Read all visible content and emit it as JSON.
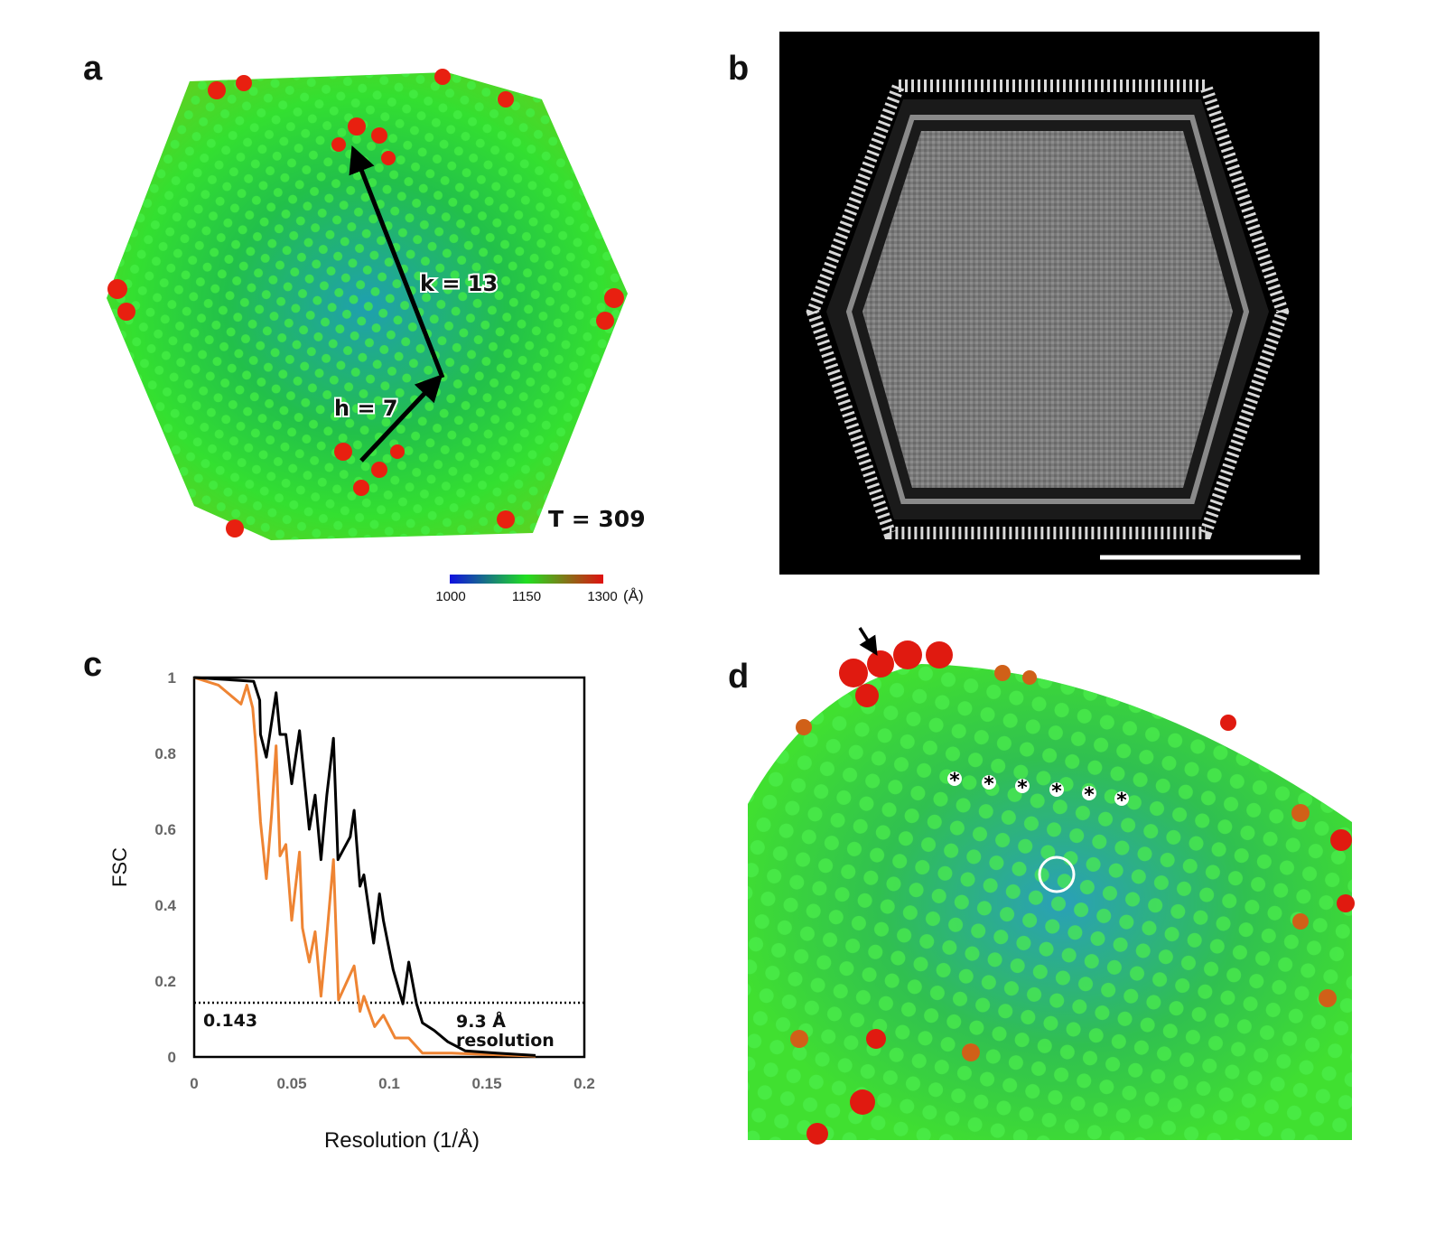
{
  "panels": {
    "a": {
      "label": "a",
      "k_label": "k = 13",
      "h_label": "h = 7",
      "t_label": "T = 309",
      "colorbar": {
        "ticks": [
          "1000",
          "1150",
          "1300"
        ],
        "unit": "(Å)",
        "colors": [
          "#1010e0",
          "#20e020",
          "#e01010"
        ]
      }
    },
    "b": {
      "label": "b"
    },
    "c": {
      "label": "c"
    },
    "d": {
      "label": "d",
      "asterisk": "*"
    }
  },
  "chart_data": {
    "type": "line",
    "title": "",
    "xlabel": "Resolution (1/Å)",
    "ylabel": "FSC",
    "xlim": [
      0,
      0.2
    ],
    "ylim": [
      0,
      1
    ],
    "xticks": [
      "0",
      "0.05",
      "0.1",
      "0.15",
      "0.2"
    ],
    "yticks": [
      "0",
      "0.2",
      "0.4",
      "0.6",
      "0.8",
      "1"
    ],
    "grid": false,
    "threshold": {
      "value": 0.143,
      "label": "0.143"
    },
    "annotation": {
      "line1": "9.3 Å",
      "line2": "resolution"
    },
    "series": [
      {
        "color": "#000000",
        "points": [
          [
            0,
            1.0
          ],
          [
            0.0305,
            0.99
          ],
          [
            0.0336,
            0.94
          ],
          [
            0.034,
            0.85
          ],
          [
            0.037,
            0.79
          ],
          [
            0.042,
            0.96
          ],
          [
            0.044,
            0.85
          ],
          [
            0.047,
            0.85
          ],
          [
            0.05,
            0.72
          ],
          [
            0.054,
            0.86
          ],
          [
            0.059,
            0.6
          ],
          [
            0.062,
            0.69
          ],
          [
            0.065,
            0.52
          ],
          [
            0.068,
            0.69
          ],
          [
            0.0714,
            0.84
          ],
          [
            0.0737,
            0.52
          ],
          [
            0.08,
            0.58
          ],
          [
            0.082,
            0.65
          ],
          [
            0.085,
            0.45
          ],
          [
            0.087,
            0.48
          ],
          [
            0.092,
            0.3
          ],
          [
            0.095,
            0.43
          ],
          [
            0.097,
            0.36
          ],
          [
            0.102,
            0.23
          ],
          [
            0.107,
            0.14
          ],
          [
            0.11,
            0.25
          ],
          [
            0.114,
            0.14
          ],
          [
            0.117,
            0.09
          ],
          [
            0.123,
            0.07
          ],
          [
            0.13,
            0.04
          ],
          [
            0.139,
            0.016
          ],
          [
            0.155,
            0.01
          ],
          [
            0.175,
            0.004
          ]
        ]
      },
      {
        "color": "#ee8433",
        "points": [
          [
            0,
            1.0
          ],
          [
            0.0124,
            0.98
          ],
          [
            0.024,
            0.93
          ],
          [
            0.027,
            0.98
          ],
          [
            0.03,
            0.92
          ],
          [
            0.0313,
            0.84
          ],
          [
            0.034,
            0.62
          ],
          [
            0.037,
            0.47
          ],
          [
            0.0397,
            0.64
          ],
          [
            0.042,
            0.82
          ],
          [
            0.044,
            0.53
          ],
          [
            0.047,
            0.56
          ],
          [
            0.05,
            0.36
          ],
          [
            0.054,
            0.54
          ],
          [
            0.0555,
            0.34
          ],
          [
            0.059,
            0.25
          ],
          [
            0.062,
            0.33
          ],
          [
            0.065,
            0.16
          ],
          [
            0.068,
            0.32
          ],
          [
            0.0714,
            0.52
          ],
          [
            0.074,
            0.15
          ],
          [
            0.082,
            0.24
          ],
          [
            0.085,
            0.12
          ],
          [
            0.087,
            0.16
          ],
          [
            0.0925,
            0.08
          ],
          [
            0.097,
            0.11
          ],
          [
            0.103,
            0.05
          ],
          [
            0.11,
            0.05
          ],
          [
            0.117,
            0.01
          ],
          [
            0.132,
            0.01
          ],
          [
            0.175,
            0.002
          ]
        ]
      }
    ]
  }
}
